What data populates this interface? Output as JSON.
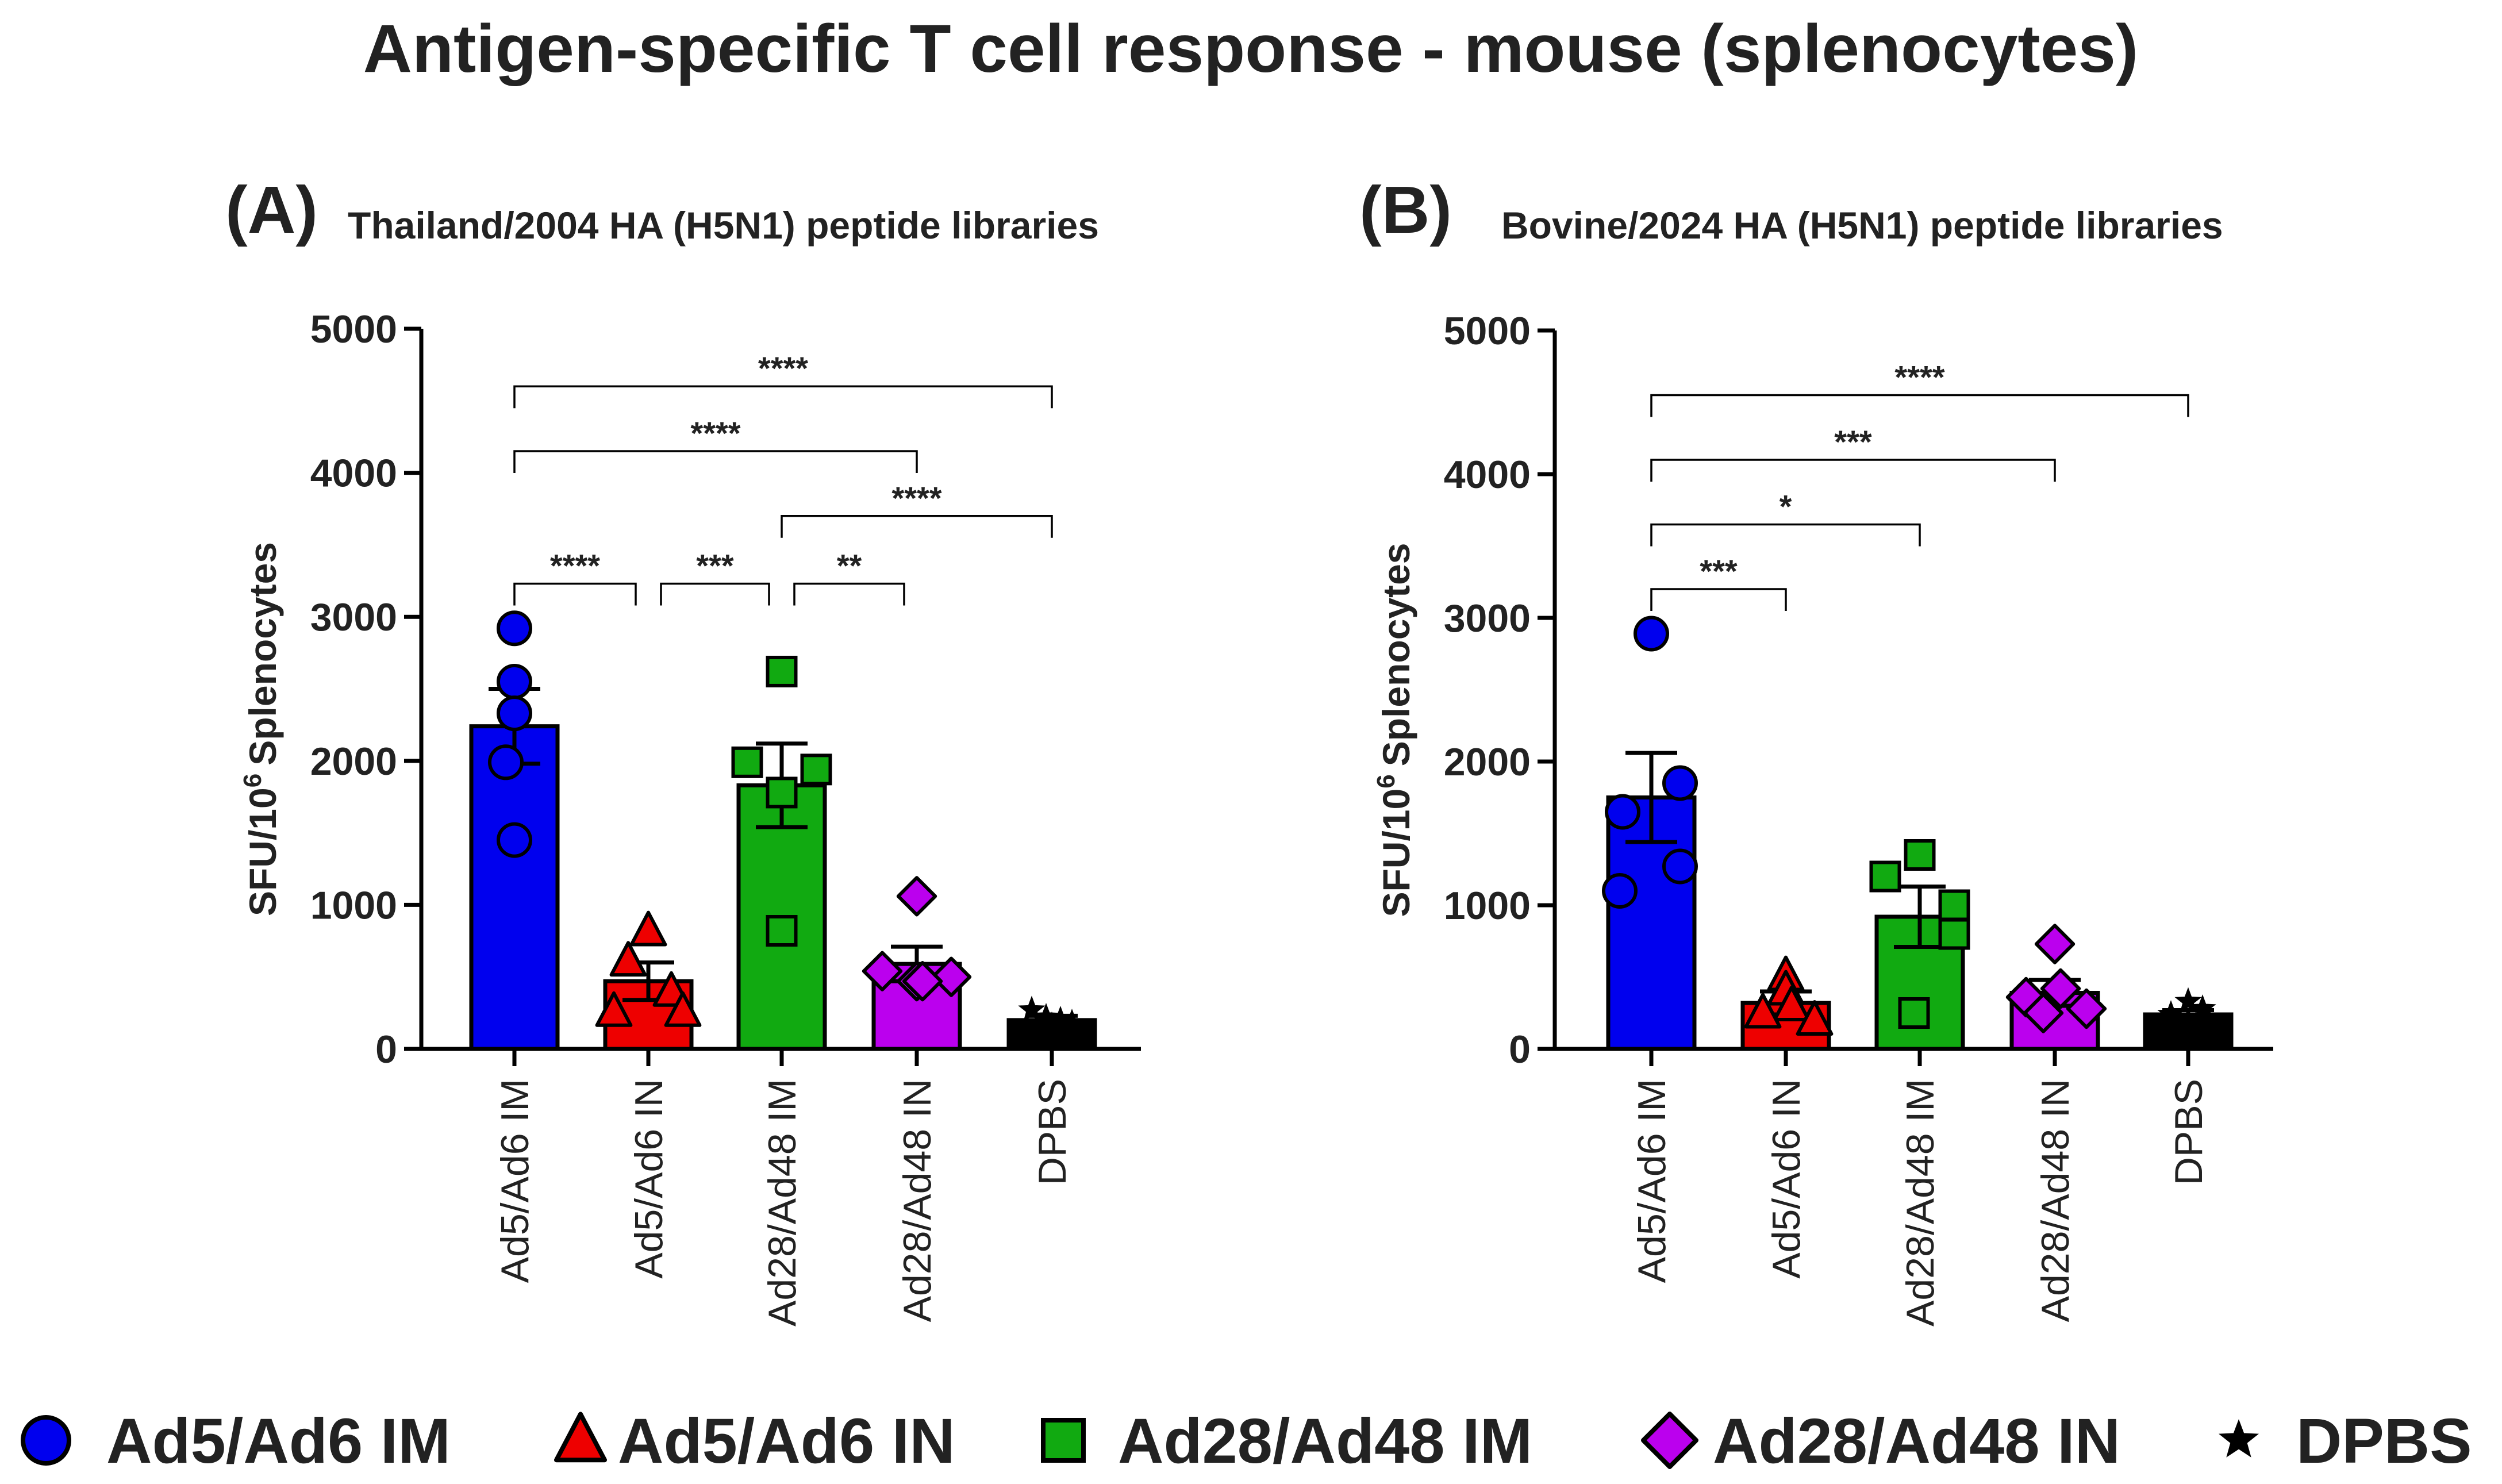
{
  "title": "Antigen-specific T cell response - mouse (splenocytes)",
  "colors": {
    "Ad5/Ad6 IM": "#0000ee",
    "Ad5/Ad6 IN": "#ee0000",
    "Ad28/Ad48 IM": "#11aa11",
    "Ad28/Ad48 IN": "#bb00ee",
    "DPBS": "#000000"
  },
  "legend": [
    {
      "label": "Ad5/Ad6 IM",
      "marker": "circle"
    },
    {
      "label": "Ad5/Ad6 IN",
      "marker": "triangle"
    },
    {
      "label": "Ad28/Ad48 IM",
      "marker": "square"
    },
    {
      "label": "Ad28/Ad48 IN",
      "marker": "diamond"
    },
    {
      "label": "DPBS",
      "marker": "star"
    }
  ],
  "chart_data": [
    {
      "panel": "(A)",
      "type": "bar",
      "title": "Thailand/2004 HA (H5N1) peptide libraries",
      "ylabel": "SFU/10",
      "ylabel_sup": "6",
      "ylabel_suffix": "Splenocytes",
      "ylim": [
        0,
        5000
      ],
      "yticks": [
        "0",
        "1000",
        "2000",
        "3000",
        "4000",
        "5000"
      ],
      "categories": [
        "Ad5/Ad6 IM",
        "Ad5/Ad6 IN",
        "Ad28/Ad48 IM",
        "Ad28/Ad48 IN",
        "DPBS"
      ],
      "markers": [
        "circle",
        "triangle",
        "square",
        "diamond",
        "star"
      ],
      "means": [
        2240,
        470,
        1830,
        590,
        200
      ],
      "sem": [
        260,
        130,
        290,
        120,
        30
      ],
      "points": [
        [
          2920,
          2550,
          2330,
          1990,
          1450
        ],
        [
          820,
          610,
          400,
          260,
          260
        ],
        [
          2620,
          1990,
          1780,
          1940,
          820
        ],
        [
          1060,
          540,
          470,
          500,
          470
        ],
        [
          270,
          220,
          200,
          180,
          160
        ]
      ],
      "comparisons": [
        {
          "from": 0,
          "to": 4,
          "label": "****",
          "level": 4600
        },
        {
          "from": 0,
          "to": 3,
          "label": "****",
          "level": 4150
        },
        {
          "from": 2,
          "to": 4,
          "label": "****",
          "level": 3700
        },
        {
          "from": 0,
          "to": 1,
          "label": "****",
          "level": 3230
        },
        {
          "from": 1,
          "to": 2,
          "label": "***",
          "level": 3230
        },
        {
          "from": 2,
          "to": 3,
          "label": "**",
          "level": 3230
        }
      ]
    },
    {
      "panel": "(B)",
      "type": "bar",
      "title": "Bovine/2024 HA (H5N1) peptide libraries",
      "ylabel": "SFU/10",
      "ylabel_sup": "6",
      "ylabel_suffix": "Splenocytes",
      "ylim": [
        0,
        5000
      ],
      "yticks": [
        "0",
        "1000",
        "2000",
        "3000",
        "4000",
        "5000"
      ],
      "categories": [
        "Ad5/Ad6 IM",
        "Ad5/Ad6 IN",
        "Ad28/Ad48 IM",
        "Ad28/Ad48 IN",
        "DPBS"
      ],
      "markers": [
        "circle",
        "triangle",
        "square",
        "diamond",
        "star"
      ],
      "means": [
        1750,
        320,
        920,
        390,
        240
      ],
      "sem": [
        310,
        80,
        210,
        90,
        30
      ],
      "points": [
        [
          2890,
          1850,
          1650,
          1270,
          1100
        ],
        [
          510,
          410,
          300,
          250,
          200
        ],
        [
          1350,
          1200,
          1000,
          800,
          250
        ],
        [
          730,
          420,
          360,
          280,
          250
        ],
        [
          330,
          280,
          240,
          200,
          170
        ]
      ],
      "comparisons": [
        {
          "from": 0,
          "to": 4,
          "label": "****",
          "level": 4550
        },
        {
          "from": 0,
          "to": 3,
          "label": "***",
          "level": 4100
        },
        {
          "from": 0,
          "to": 2,
          "label": "*",
          "level": 3650
        },
        {
          "from": 0,
          "to": 1,
          "label": "***",
          "level": 3200
        }
      ]
    }
  ]
}
